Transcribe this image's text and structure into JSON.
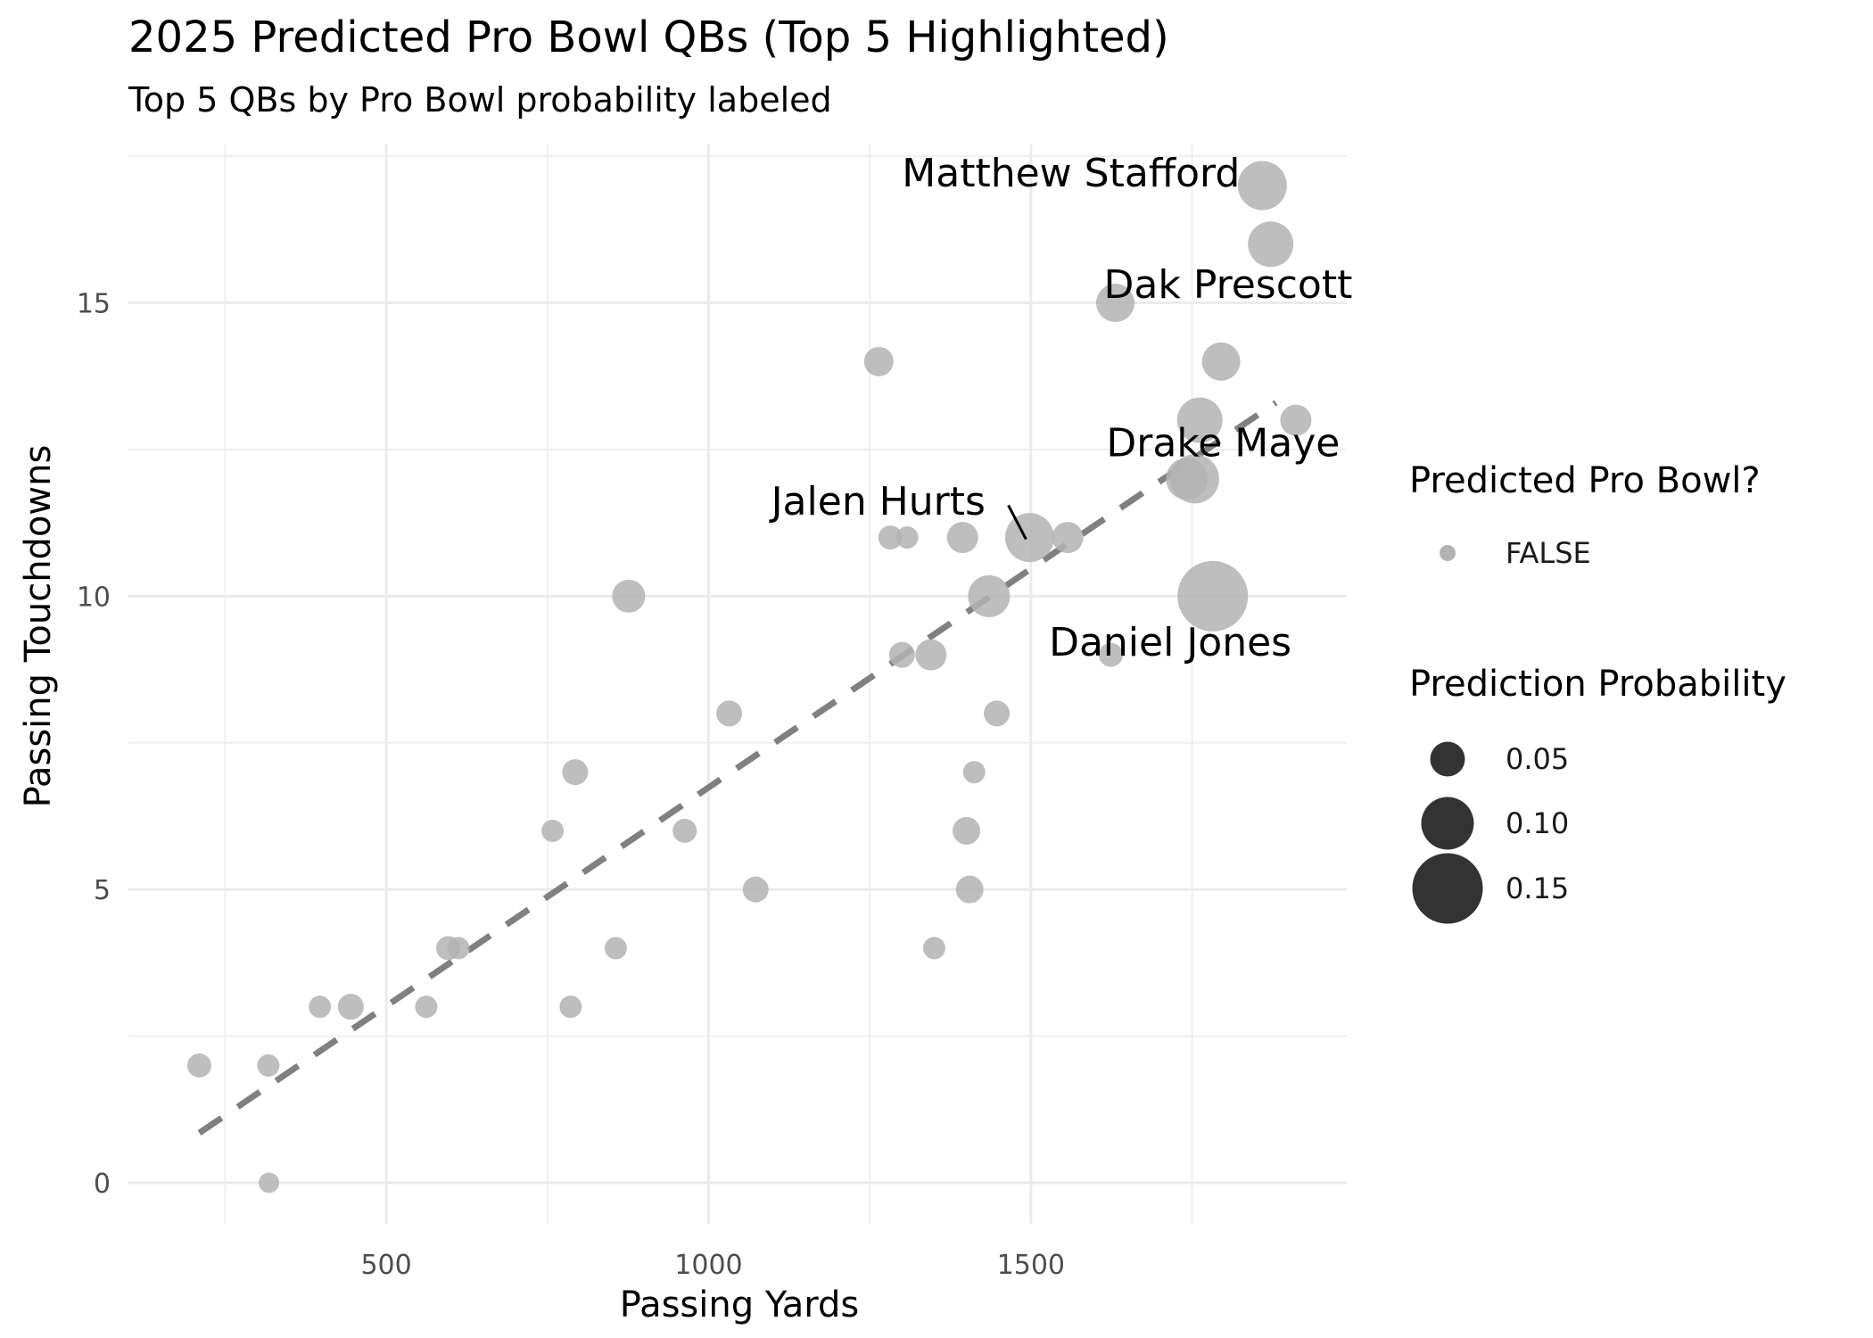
{
  "chart_data": {
    "type": "scatter",
    "title": "2025 Predicted Pro Bowl QBs (Top 5 Highlighted)",
    "subtitle": "Top 5 QBs by Pro Bowl probability labeled",
    "xlabel": "Passing Yards",
    "ylabel": "Passing Touchdowns",
    "xlim": [
      100,
      1990
    ],
    "ylim": [
      -0.7,
      17.7
    ],
    "xticks": [
      500,
      1000,
      1500
    ],
    "yticks": [
      0,
      5,
      10,
      15
    ],
    "grid": true,
    "point_color": "#b3b3b3",
    "trend_line": {
      "style": "dashed",
      "color": "#808080",
      "x": [
        210,
        1880
      ],
      "y": [
        0.85,
        13.3
      ]
    },
    "points": [
      {
        "x": 210,
        "y": 2,
        "p": 0.02
      },
      {
        "x": 317,
        "y": 2,
        "p": 0.015
      },
      {
        "x": 318,
        "y": 0,
        "p": 0.01
      },
      {
        "x": 397,
        "y": 3,
        "p": 0.015
      },
      {
        "x": 445,
        "y": 3,
        "p": 0.025
      },
      {
        "x": 562,
        "y": 3,
        "p": 0.015
      },
      {
        "x": 596,
        "y": 4,
        "p": 0.02
      },
      {
        "x": 612,
        "y": 4,
        "p": 0.015
      },
      {
        "x": 758,
        "y": 6,
        "p": 0.015
      },
      {
        "x": 786,
        "y": 3,
        "p": 0.015
      },
      {
        "x": 793,
        "y": 7,
        "p": 0.025
      },
      {
        "x": 856,
        "y": 4,
        "p": 0.015
      },
      {
        "x": 876,
        "y": 10,
        "p": 0.045
      },
      {
        "x": 963,
        "y": 6,
        "p": 0.02
      },
      {
        "x": 1032,
        "y": 8,
        "p": 0.025
      },
      {
        "x": 1073,
        "y": 5,
        "p": 0.025
      },
      {
        "x": 1264,
        "y": 14,
        "p": 0.035
      },
      {
        "x": 1282,
        "y": 11,
        "p": 0.02
      },
      {
        "x": 1308,
        "y": 11,
        "p": 0.015
      },
      {
        "x": 1300,
        "y": 9,
        "p": 0.025
      },
      {
        "x": 1345,
        "y": 9,
        "p": 0.04
      },
      {
        "x": 1350,
        "y": 4,
        "p": 0.015
      },
      {
        "x": 1394,
        "y": 11,
        "p": 0.04
      },
      {
        "x": 1400,
        "y": 6,
        "p": 0.03
      },
      {
        "x": 1405,
        "y": 5,
        "p": 0.03
      },
      {
        "x": 1412,
        "y": 7,
        "p": 0.015
      },
      {
        "x": 1447,
        "y": 8,
        "p": 0.025
      },
      {
        "x": 1435,
        "y": 10,
        "p": 0.07
      },
      {
        "x": 1498,
        "y": 11,
        "p": 0.09
      },
      {
        "x": 1557,
        "y": 11,
        "p": 0.04
      },
      {
        "x": 1624,
        "y": 9,
        "p": 0.02
      },
      {
        "x": 1631,
        "y": 15,
        "p": 0.06
      },
      {
        "x": 1754,
        "y": 12,
        "p": 0.09
      },
      {
        "x": 1742,
        "y": 12,
        "p": 0.07
      },
      {
        "x": 1762,
        "y": 13,
        "p": 0.08
      },
      {
        "x": 1782,
        "y": 10,
        "p": 0.15
      },
      {
        "x": 1795,
        "y": 14,
        "p": 0.06
      },
      {
        "x": 1859,
        "y": 17,
        "p": 0.09
      },
      {
        "x": 1872,
        "y": 16,
        "p": 0.08
      },
      {
        "x": 1911,
        "y": 13,
        "p": 0.04
      }
    ],
    "labels": [
      {
        "text": "Matthew Stafford",
        "x": 1300,
        "y": 17.2
      },
      {
        "text": "Dak Prescott",
        "x": 1613,
        "y": 15.3
      },
      {
        "text": "Drake Maye",
        "x": 1617,
        "y": 12.6
      },
      {
        "text": "Jalen Hurts",
        "x": 1097,
        "y": 11.6
      },
      {
        "text": "Daniel Jones",
        "x": 1528,
        "y": 9.2
      }
    ],
    "legend": {
      "placement": "right",
      "color_title": "Predicted Pro Bowl?",
      "color_entries": [
        "FALSE"
      ],
      "size_title": "Prediction Probability",
      "size_entries": [
        {
          "label": "0.05",
          "value": 0.05
        },
        {
          "label": "0.10",
          "value": 0.1
        },
        {
          "label": "0.15",
          "value": 0.15
        }
      ]
    }
  }
}
